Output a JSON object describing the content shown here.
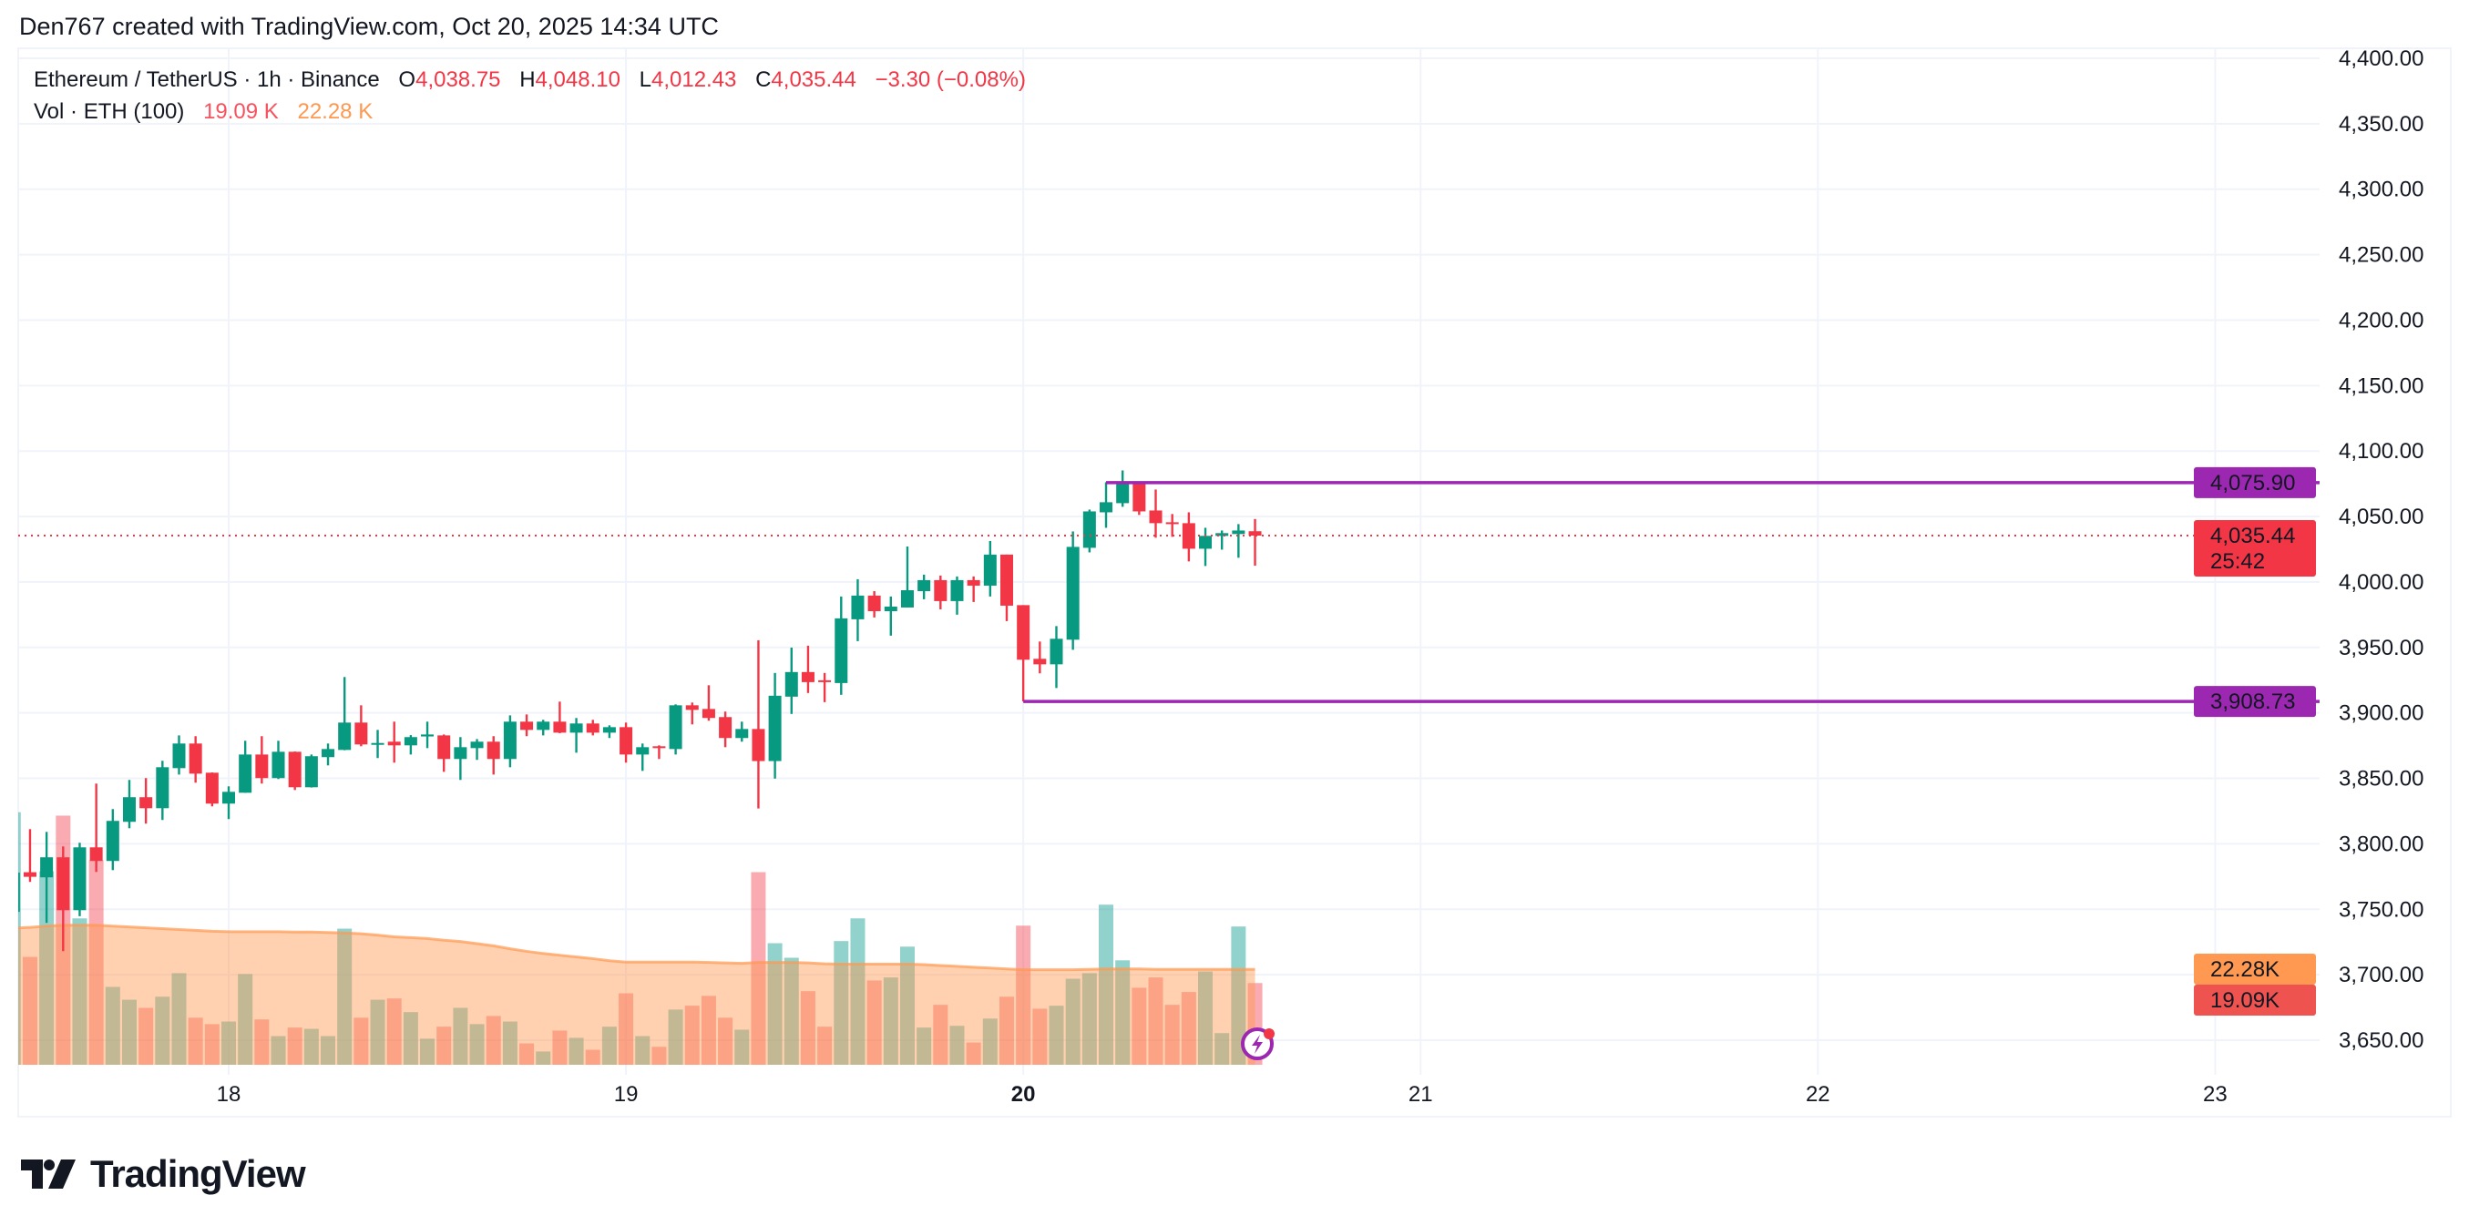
{
  "attribution": "Den767 created with TradingView.com, Oct 20, 2025 14:34 UTC",
  "legend": {
    "symbol": "Ethereum / TetherUS · 1h · Binance",
    "o_label": "O",
    "o": "4,038.75",
    "h_label": "H",
    "h": "4,048.10",
    "l_label": "L",
    "l": "4,012.43",
    "c_label": "C",
    "c": "4,035.44",
    "change": "−3.30 (−0.08%)",
    "vol_title": "Vol · ETH (100)",
    "vol_value": "19.09 K",
    "vol_ma_value": "22.28 K"
  },
  "logo": {
    "text": "TradingView"
  },
  "price_axis": {
    "ticks": [
      "4,400.00",
      "4,350.00",
      "4,300.00",
      "4,250.00",
      "4,200.00",
      "4,150.00",
      "4,100.00",
      "4,050.00",
      "4,000.00",
      "3,950.00",
      "3,900.00",
      "3,850.00",
      "3,800.00",
      "3,750.00",
      "3,700.00",
      "3,650.00"
    ],
    "current_price_label": "4,035.44",
    "countdown": "25:42",
    "level_labels": [
      "4,075.90",
      "3,908.73"
    ],
    "volume_ma_label": "22.28K",
    "volume_label": "19.09K"
  },
  "time_axis": {
    "ticks": [
      {
        "label": "18",
        "bold": false
      },
      {
        "label": "19",
        "bold": false
      },
      {
        "label": "20",
        "bold": true
      },
      {
        "label": "21",
        "bold": false
      },
      {
        "label": "22",
        "bold": false
      },
      {
        "label": "23",
        "bold": false
      }
    ]
  },
  "colors": {
    "up": "#089981",
    "down": "#F23645",
    "level": "#9C27B0",
    "vol_ma": "#FF9850",
    "vol_down_label": "#EF5350",
    "text": "#131722"
  },
  "icons": {
    "alert": "lightning-bolt-icon"
  },
  "chart_data": {
    "type": "candlestick",
    "interval": "1h",
    "ylim": [
      3650,
      4400
    ],
    "volume_ma_length": 100,
    "grid": true,
    "levels": [
      {
        "price": 4075.9,
        "from": "2025-10-20T05:00"
      },
      {
        "price": 3908.73,
        "from": "2025-10-20T00:00"
      }
    ],
    "current_price": 4035.44,
    "columns": [
      "time",
      "open",
      "high",
      "low",
      "close",
      "volume_k",
      "volume_ma_k"
    ],
    "candles": [
      [
        "2025-10-17T11:00",
        3748,
        3795,
        3730,
        3778,
        59.0,
        31.9
      ],
      [
        "2025-10-17T12:00",
        3778.3,
        3811.2,
        3770.9,
        3774.8,
        25.2,
        32.1
      ],
      [
        "2025-10-17T13:00",
        3774.4,
        3809.1,
        3739.6,
        3789.7,
        45.2,
        32.4
      ],
      [
        "2025-10-17T14:00",
        3789.7,
        3798.0,
        3718.0,
        3749.3,
        58.2,
        32.6
      ],
      [
        "2025-10-17T15:00",
        3749.3,
        3800.8,
        3744.7,
        3797.3,
        34.2,
        32.6
      ],
      [
        "2025-10-17T16:00",
        3797.3,
        3846.0,
        3778.5,
        3786.9,
        47.8,
        32.6
      ],
      [
        "2025-10-17T17:00",
        3786.9,
        3826.5,
        3779.9,
        3817.5,
        18.2,
        32.4
      ],
      [
        "2025-10-17T18:00",
        3816.8,
        3848.8,
        3811.9,
        3835.6,
        15.2,
        32.2
      ],
      [
        "2025-10-17T19:00",
        3835.6,
        3850.2,
        3815.4,
        3827.2,
        13.3,
        32.0
      ],
      [
        "2025-10-17T20:00",
        3827.2,
        3863.4,
        3818.2,
        3858.5,
        15.9,
        31.8
      ],
      [
        "2025-10-17T21:00",
        3857.8,
        3882.8,
        3852.9,
        3876.6,
        21.4,
        31.6
      ],
      [
        "2025-10-17T22:00",
        3876.6,
        3882.2,
        3846.7,
        3853.6,
        11.0,
        31.4
      ],
      [
        "2025-10-17T23:00",
        3854.3,
        3854.5,
        3828.6,
        3830.7,
        9.5,
        31.2
      ],
      [
        "2025-10-18T00:00",
        3830.7,
        3843.9,
        3818.9,
        3839.7,
        10.1,
        31.1
      ],
      [
        "2025-10-18T01:00",
        3839.0,
        3878.7,
        3839.0,
        3868.2,
        21.2,
        31.1
      ],
      [
        "2025-10-18T02:00",
        3868.2,
        3882.2,
        3846.0,
        3850.2,
        10.6,
        31.1
      ],
      [
        "2025-10-18T03:00",
        3850.2,
        3878.7,
        3849.5,
        3870.3,
        6.7,
        31.1
      ],
      [
        "2025-10-18T04:00",
        3870.3,
        3870.5,
        3841.1,
        3843.2,
        8.7,
        31.0
      ],
      [
        "2025-10-18T05:00",
        3843.2,
        3868.2,
        3843.0,
        3866.9,
        8.4,
        31.0
      ],
      [
        "2025-10-18T06:00",
        3866.2,
        3876.6,
        3859.9,
        3872.4,
        6.7,
        30.9
      ],
      [
        "2025-10-18T07:00",
        3871.7,
        3927.4,
        3871.5,
        3892.6,
        31.8,
        30.8
      ],
      [
        "2025-10-18T08:00",
        3892.6,
        3905.8,
        3874.5,
        3875.9,
        11.0,
        30.6
      ],
      [
        "2025-10-18T09:00",
        3876.0,
        3887.0,
        3865.5,
        3877.0,
        15.2,
        30.3
      ],
      [
        "2025-10-18T10:00",
        3878.0,
        3893.3,
        3862.0,
        3875.2,
        15.5,
        29.9
      ],
      [
        "2025-10-18T11:00",
        3875.2,
        3883.0,
        3868.2,
        3881.5,
        12.3,
        29.7
      ],
      [
        "2025-10-18T12:00",
        3882.0,
        3893.3,
        3873.1,
        3883.5,
        6.1,
        29.5
      ],
      [
        "2025-10-18T13:00",
        3882.8,
        3883.5,
        3855.0,
        3864.8,
        8.9,
        29.1
      ],
      [
        "2025-10-18T14:00",
        3864.8,
        3881.5,
        3848.8,
        3873.8,
        13.3,
        28.8
      ],
      [
        "2025-10-18T15:00",
        3873.1,
        3880.0,
        3864.1,
        3878.0,
        9.5,
        28.3
      ],
      [
        "2025-10-18T16:00",
        3878.0,
        3882.2,
        3852.9,
        3864.8,
        11.4,
        27.8
      ],
      [
        "2025-10-18T17:00",
        3864.8,
        3898.1,
        3858.5,
        3893.3,
        10.1,
        27.1
      ],
      [
        "2025-10-18T18:00",
        3893.3,
        3898.8,
        3882.2,
        3887.0,
        5.0,
        26.5
      ],
      [
        "2025-10-18T19:00",
        3887.0,
        3894.7,
        3882.8,
        3893.3,
        3.1,
        26.0
      ],
      [
        "2025-10-18T20:00",
        3893.3,
        3908.6,
        3884.5,
        3884.9,
        8.0,
        25.6
      ],
      [
        "2025-10-18T21:00",
        3884.9,
        3896.1,
        3869.6,
        3891.9,
        6.3,
        25.2
      ],
      [
        "2025-10-18T22:00",
        3891.9,
        3894.7,
        3882.8,
        3884.9,
        3.5,
        24.8
      ],
      [
        "2025-10-18T23:00",
        3884.9,
        3890.5,
        3880.8,
        3889.1,
        8.9,
        24.3
      ],
      [
        "2025-10-19T00:00",
        3889.1,
        3892.6,
        3862.0,
        3868.2,
        16.7,
        24.0
      ],
      [
        "2025-10-19T01:00",
        3868.2,
        3876.6,
        3855.7,
        3873.8,
        6.7,
        24.0
      ],
      [
        "2025-10-19T02:00",
        3874.5,
        3875.2,
        3864.8,
        3873.1,
        4.2,
        24.0
      ],
      [
        "2025-10-19T03:00",
        3872.4,
        3906.5,
        3868.2,
        3905.8,
        12.9,
        24.0
      ],
      [
        "2025-10-19T04:00",
        3905.8,
        3907.9,
        3891.2,
        3902.3,
        13.8,
        24.0
      ],
      [
        "2025-10-19T05:00",
        3903.0,
        3921.1,
        3894.0,
        3896.1,
        16.1,
        23.9
      ],
      [
        "2025-10-19T06:00",
        3896.8,
        3901.0,
        3873.8,
        3880.8,
        11.0,
        23.8
      ],
      [
        "2025-10-19T07:00",
        3880.8,
        3893.3,
        3878.0,
        3887.7,
        8.2,
        23.7
      ],
      [
        "2025-10-19T08:00",
        3887.7,
        3955.5,
        3827.0,
        3863.2,
        45.0,
        23.9
      ],
      [
        "2025-10-19T09:00",
        3863.2,
        3930.5,
        3849.8,
        3913.1,
        28.4,
        23.9
      ],
      [
        "2025-10-19T10:00",
        3912.4,
        3949.9,
        3899.2,
        3931.2,
        25.0,
        23.9
      ],
      [
        "2025-10-19T11:00",
        3931.2,
        3951.3,
        3915.2,
        3923.5,
        17.2,
        23.8
      ],
      [
        "2025-10-19T12:00",
        3924.9,
        3930.5,
        3908.2,
        3923.5,
        8.9,
        23.6
      ],
      [
        "2025-10-19T13:00",
        3922.8,
        3988.9,
        3913.8,
        3972.2,
        28.9,
        23.5
      ],
      [
        "2025-10-19T14:00",
        3971.5,
        4002.1,
        3954.8,
        3989.6,
        34.2,
        23.5
      ],
      [
        "2025-10-19T15:00",
        3989.6,
        3993.0,
        3972.9,
        3977.7,
        19.7,
        23.5
      ],
      [
        "2025-10-19T16:00",
        3977.7,
        3988.9,
        3959.0,
        3981.2,
        20.4,
        23.5
      ],
      [
        "2025-10-19T17:00",
        3980.5,
        4027.1,
        3980.5,
        3993.7,
        27.6,
        23.5
      ],
      [
        "2025-10-19T18:00",
        3993.0,
        4005.6,
        3986.8,
        4001.4,
        8.7,
        23.4
      ],
      [
        "2025-10-19T19:00",
        4001.4,
        4004.9,
        3979.1,
        3985.4,
        14.0,
        23.2
      ],
      [
        "2025-10-19T20:00",
        3985.4,
        4004.2,
        3975.0,
        4001.4,
        9.1,
        23.0
      ],
      [
        "2025-10-19T21:00",
        4001.4,
        4004.2,
        3984.7,
        3997.2,
        5.2,
        22.8
      ],
      [
        "2025-10-19T22:00",
        3997.2,
        4031.3,
        3988.9,
        4020.9,
        10.8,
        22.6
      ],
      [
        "2025-10-19T23:00",
        4020.9,
        4020.9,
        3970.1,
        3981.9,
        15.9,
        22.4
      ],
      [
        "2025-10-20T00:00",
        3982.3,
        3982.3,
        3908.73,
        3940.6,
        32.5,
        22.2
      ],
      [
        "2025-10-20T01:00",
        3941.3,
        3954.5,
        3930.2,
        3937.1,
        13.1,
        22.2
      ],
      [
        "2025-10-20T02:00",
        3937.1,
        3966.3,
        3919.0,
        3956.6,
        13.8,
        22.2
      ],
      [
        "2025-10-20T03:00",
        3955.9,
        4038.6,
        3948.2,
        4026.8,
        20.1,
        22.2
      ],
      [
        "2025-10-20T04:00",
        4026.1,
        4055.3,
        4022.6,
        4053.9,
        21.4,
        22.3
      ],
      [
        "2025-10-20T05:00",
        4053.2,
        4076.2,
        4041.4,
        4060.9,
        37.4,
        22.4
      ],
      [
        "2025-10-20T06:00",
        4060.2,
        4085.2,
        4057.4,
        4074.8,
        24.4,
        22.4
      ],
      [
        "2025-10-20T07:00",
        4074.8,
        4075.9,
        4051.2,
        4053.9,
        18.0,
        22.4
      ],
      [
        "2025-10-20T08:00",
        4054.6,
        4070.6,
        4033.8,
        4044.9,
        20.4,
        22.3
      ],
      [
        "2025-10-20T09:00",
        4045.6,
        4051.9,
        4034.5,
        4044.2,
        14.0,
        22.3
      ],
      [
        "2025-10-20T10:00",
        4044.9,
        4053.2,
        4015.7,
        4025.4,
        17.0,
        22.3
      ],
      [
        "2025-10-20T11:00",
        4025.4,
        4041.4,
        4012.2,
        4035.2,
        21.8,
        22.3
      ],
      [
        "2025-10-20T12:00",
        4035.2,
        4039.3,
        4024.7,
        4037.3,
        7.4,
        22.3
      ],
      [
        "2025-10-20T13:00",
        4036.6,
        4044.2,
        4018.5,
        4039.3,
        32.3,
        22.3
      ],
      [
        "2025-10-20T14:00",
        4038.75,
        4048.1,
        4012.43,
        4035.44,
        19.09,
        22.28
      ]
    ]
  }
}
